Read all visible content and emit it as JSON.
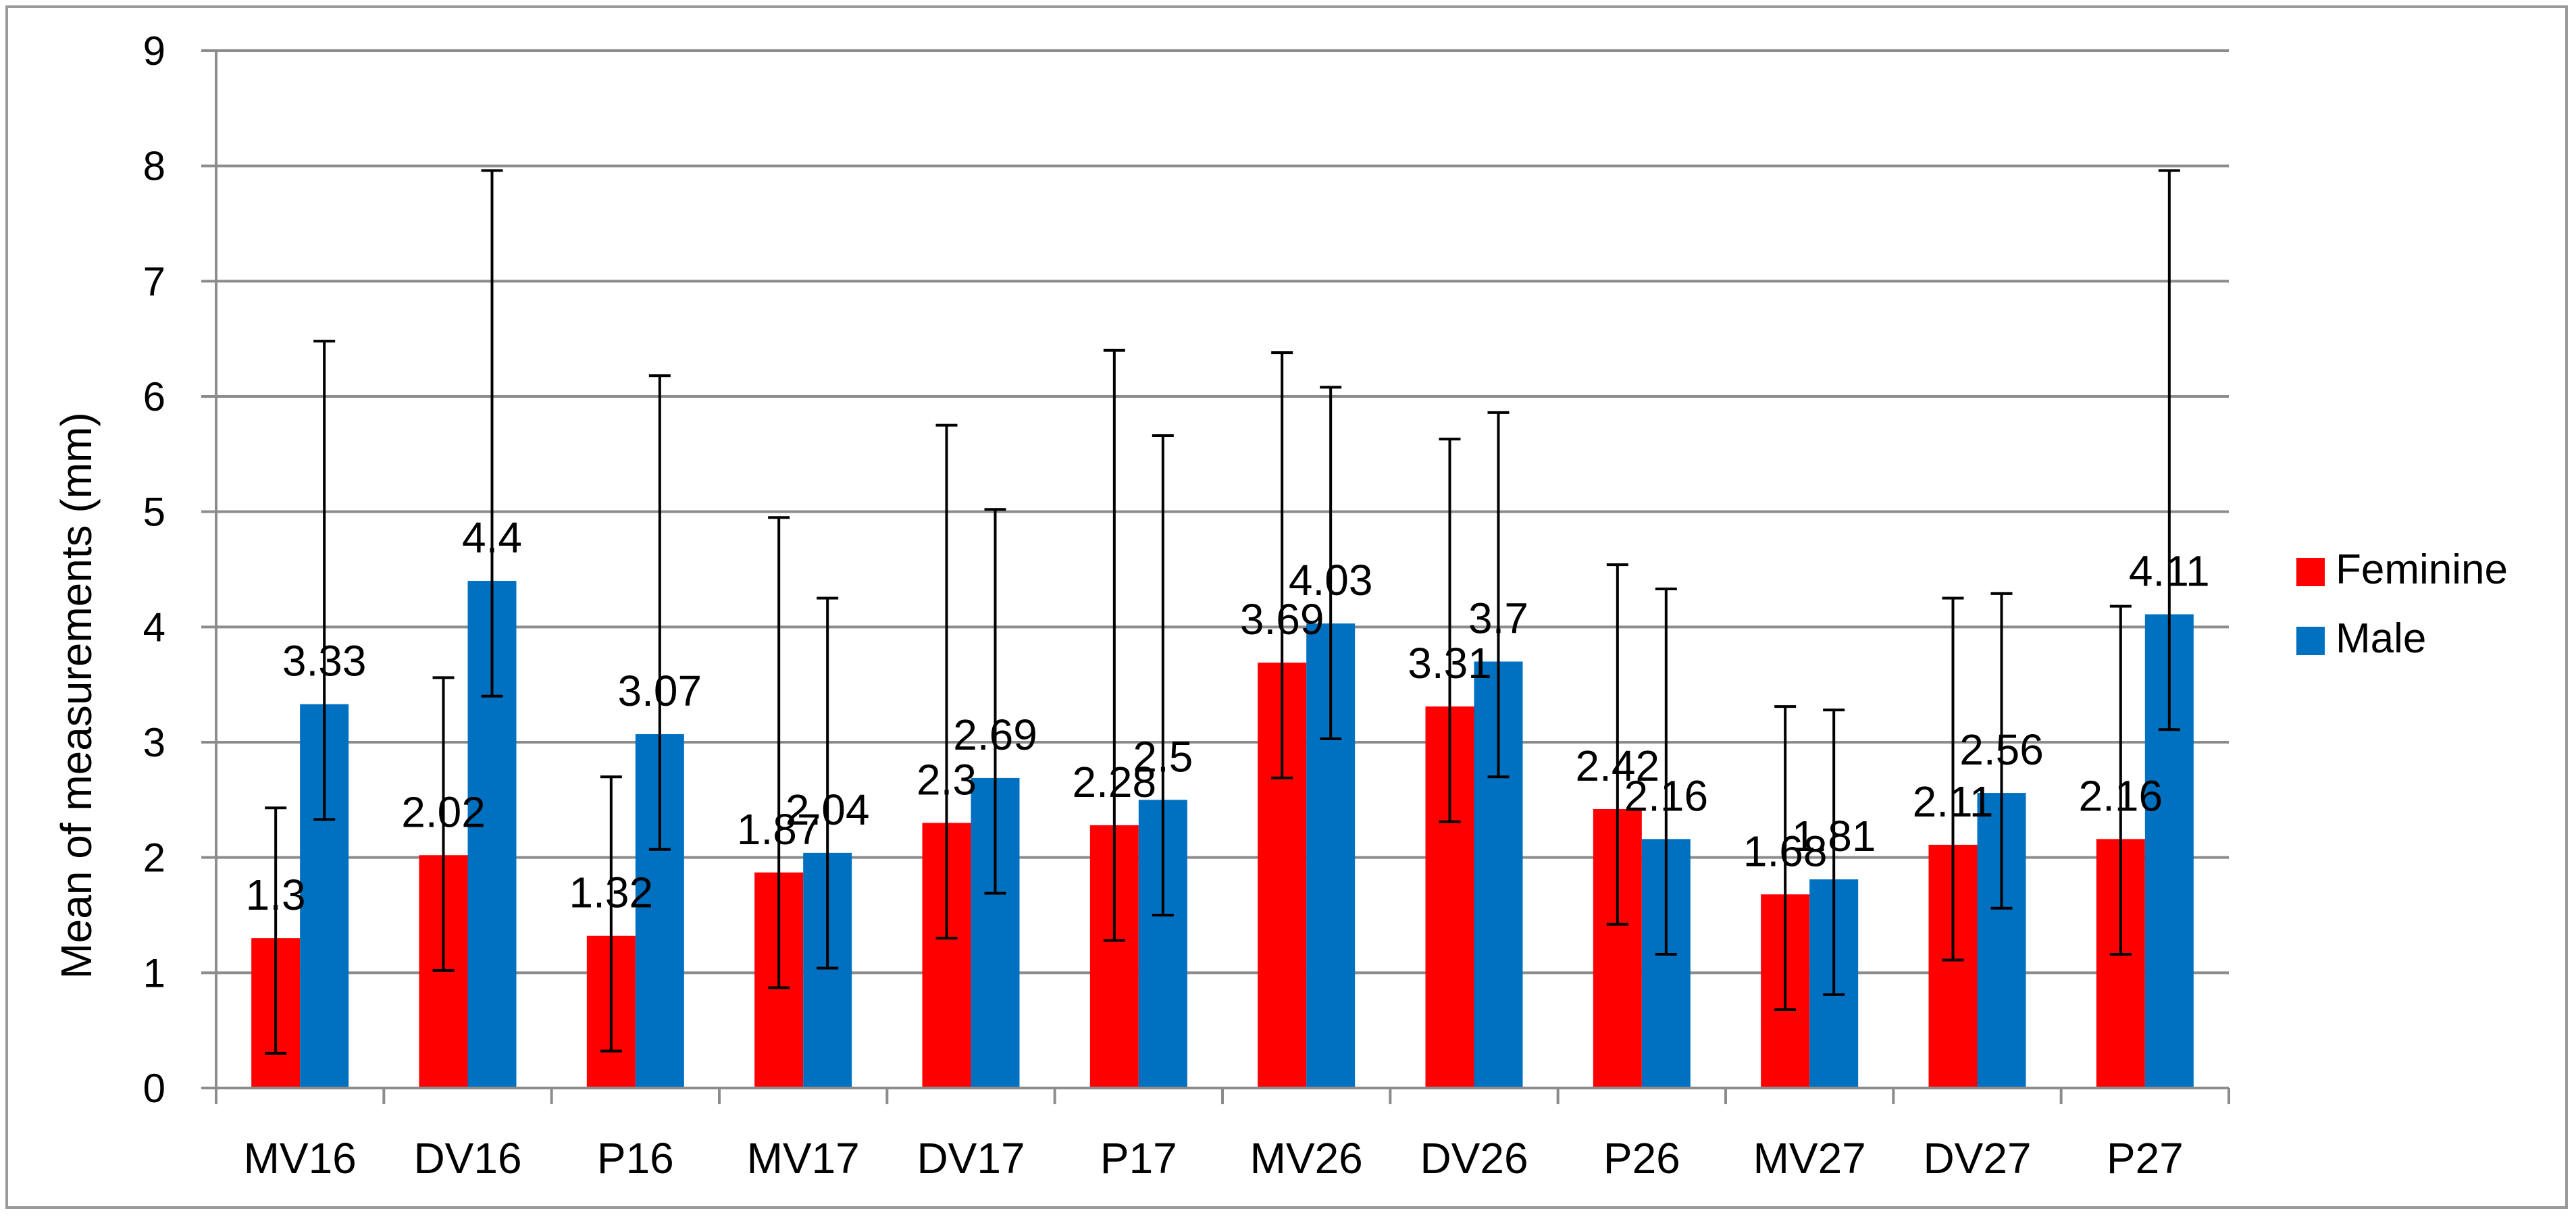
{
  "chart_data": {
    "type": "bar",
    "title": "",
    "xlabel": "",
    "ylabel": "Mean of measurements (mm)",
    "ylim": [
      0,
      9
    ],
    "yticks": [
      0,
      1,
      2,
      3,
      4,
      5,
      6,
      7,
      8,
      9
    ],
    "grid": true,
    "legend_position": "right",
    "categories": [
      "MV16",
      "DV16",
      "P16",
      "MV17",
      "DV17",
      "P17",
      "MV26",
      "DV26",
      "P26",
      "MV27",
      "DV27",
      "P27"
    ],
    "series": [
      {
        "name": "Feminine",
        "color": "#ff0000",
        "values": [
          1.3,
          2.02,
          1.32,
          1.87,
          2.3,
          2.28,
          3.69,
          3.31,
          2.42,
          1.68,
          2.11,
          2.16
        ],
        "labels": [
          "1.3",
          "2.02",
          "1.32",
          "1.87",
          "2.3",
          "2.28",
          "3.69",
          "3.31",
          "2.42",
          "1.68",
          "2.11",
          "2.16"
        ],
        "error_low": [
          0.3,
          1.02,
          0.32,
          0.87,
          1.3,
          1.28,
          2.69,
          2.31,
          1.42,
          0.68,
          1.11,
          1.16
        ],
        "error_high": [
          2.43,
          3.56,
          2.7,
          4.95,
          5.75,
          6.4,
          6.38,
          5.63,
          4.54,
          3.31,
          4.25,
          4.18
        ]
      },
      {
        "name": "Male",
        "color": "#0070c0",
        "values": [
          3.33,
          4.4,
          3.07,
          2.04,
          2.69,
          2.5,
          4.03,
          3.7,
          2.16,
          1.81,
          2.56,
          4.11
        ],
        "labels": [
          "3.33",
          "4.4",
          "3.07",
          "2.04",
          "2.69",
          "2.5",
          "4.03",
          "3.7",
          "2.16",
          "1.81",
          "2.56",
          "4.11"
        ],
        "error_low": [
          2.33,
          3.4,
          2.07,
          1.04,
          1.69,
          1.5,
          3.03,
          2.7,
          1.16,
          0.81,
          1.56,
          3.11
        ],
        "error_high": [
          6.48,
          7.96,
          6.18,
          4.25,
          5.02,
          5.66,
          6.08,
          5.86,
          4.33,
          3.28,
          4.29,
          7.96
        ]
      }
    ]
  }
}
